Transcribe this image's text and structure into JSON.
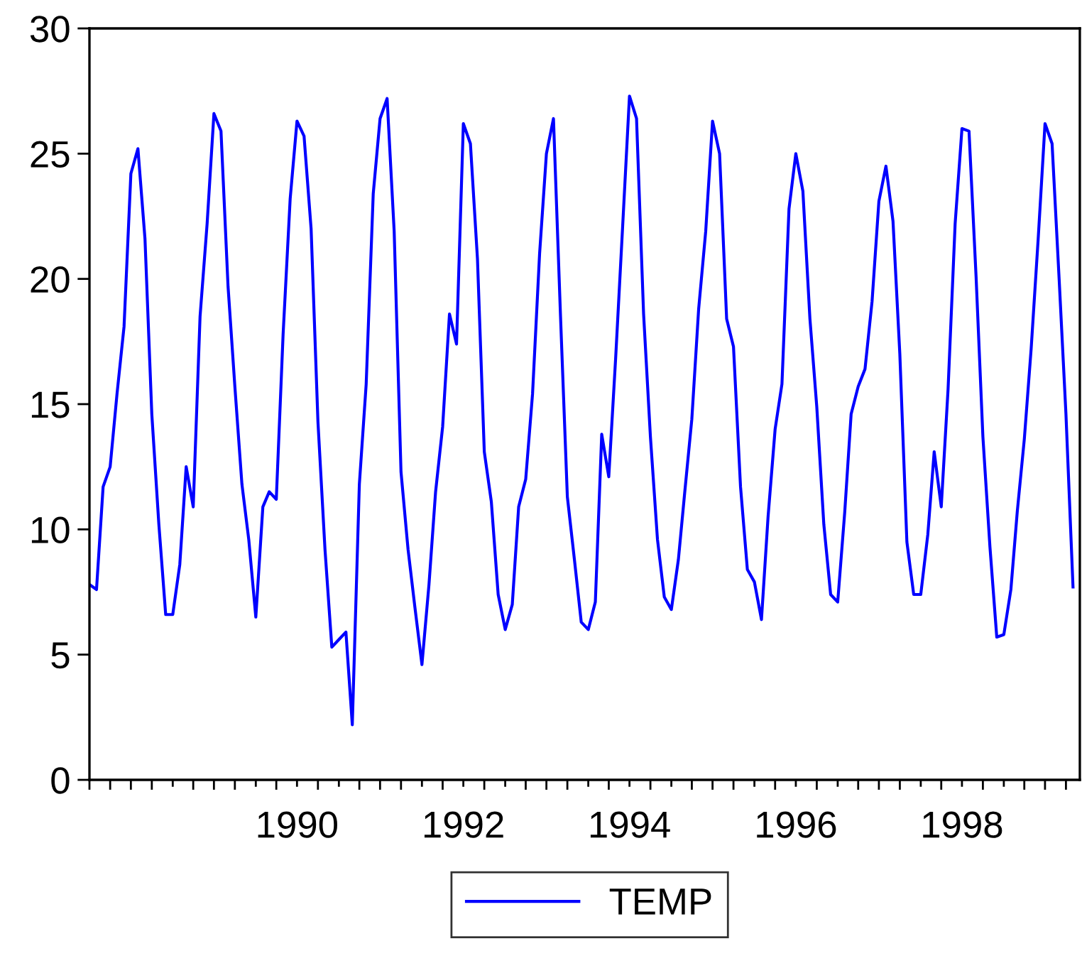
{
  "chart_data": {
    "type": "line",
    "x": [
      "1988-01",
      "1988-02",
      "1988-03",
      "1988-04",
      "1988-05",
      "1988-06",
      "1988-07",
      "1988-08",
      "1988-09",
      "1988-10",
      "1988-11",
      "1988-12",
      "1989-01",
      "1989-02",
      "1989-03",
      "1989-04",
      "1989-05",
      "1989-06",
      "1989-07",
      "1989-08",
      "1989-09",
      "1989-10",
      "1989-11",
      "1989-12",
      "1990-01",
      "1990-02",
      "1990-03",
      "1990-04",
      "1990-05",
      "1990-06",
      "1990-07",
      "1990-08",
      "1990-09",
      "1990-10",
      "1990-11",
      "1990-12",
      "1991-01",
      "1991-02",
      "1991-03",
      "1991-04",
      "1991-05",
      "1991-06",
      "1991-07",
      "1991-08",
      "1991-09",
      "1991-10",
      "1991-11",
      "1991-12",
      "1992-01",
      "1992-02",
      "1992-03",
      "1992-04",
      "1992-05",
      "1992-06",
      "1992-07",
      "1992-08",
      "1992-09",
      "1992-10",
      "1992-11",
      "1992-12",
      "1993-01",
      "1993-02",
      "1993-03",
      "1993-04",
      "1993-05",
      "1993-06",
      "1993-07",
      "1993-08",
      "1993-09",
      "1993-10",
      "1993-11",
      "1993-12",
      "1994-01",
      "1994-02",
      "1994-03",
      "1994-04",
      "1994-05",
      "1994-06",
      "1994-07",
      "1994-08",
      "1994-09",
      "1994-10",
      "1994-11",
      "1994-12",
      "1995-01",
      "1995-02",
      "1995-03",
      "1995-04",
      "1995-05",
      "1995-06",
      "1995-07",
      "1995-08",
      "1995-09",
      "1995-10",
      "1995-11",
      "1995-12",
      "1996-01",
      "1996-02",
      "1996-03",
      "1996-04",
      "1996-05",
      "1996-06",
      "1996-07",
      "1996-08",
      "1996-09",
      "1996-10",
      "1996-11",
      "1996-12",
      "1997-01",
      "1997-02",
      "1997-03",
      "1997-04",
      "1997-05",
      "1997-06",
      "1997-07",
      "1997-08",
      "1997-09",
      "1997-10",
      "1997-11",
      "1997-12",
      "1998-01",
      "1998-02",
      "1998-03",
      "1998-04",
      "1998-05",
      "1998-06",
      "1998-07",
      "1998-08",
      "1998-09",
      "1998-10",
      "1998-11",
      "1998-12",
      "1999-01",
      "1999-02",
      "1999-03",
      "1999-04",
      "1999-05",
      "1999-06",
      "1999-07",
      "1999-08",
      "1999-09",
      "1999-10",
      "1999-11"
    ],
    "series": [
      {
        "name": "TEMP",
        "color": "#0000ff",
        "values": [
          7.8,
          7.6,
          11.7,
          12.5,
          15.4,
          18.1,
          24.2,
          25.2,
          21.6,
          14.6,
          10.2,
          6.6,
          6.6,
          8.6,
          12.5,
          10.9,
          18.5,
          22.2,
          26.6,
          25.9,
          19.7,
          15.7,
          11.8,
          9.6,
          6.5,
          10.9,
          11.5,
          11.2,
          17.8,
          23.2,
          26.3,
          25.7,
          22.0,
          14.3,
          9.2,
          5.3,
          5.6,
          5.9,
          2.2,
          11.8,
          15.8,
          23.4,
          26.4,
          27.2,
          21.9,
          12.3,
          9.2,
          6.9,
          4.6,
          7.8,
          11.5,
          14.1,
          18.6,
          17.4,
          26.2,
          25.4,
          20.8,
          13.1,
          11.1,
          7.4,
          6.0,
          7.0,
          10.9,
          12.0,
          15.4,
          21.0,
          25.0,
          26.4,
          18.5,
          11.3,
          8.8,
          6.3,
          6.0,
          7.1,
          13.8,
          12.1,
          16.8,
          22.1,
          27.3,
          26.4,
          18.6,
          13.7,
          9.6,
          7.3,
          6.8,
          8.8,
          11.5,
          14.4,
          18.8,
          21.9,
          26.3,
          25.0,
          18.4,
          17.3,
          11.7,
          8.4,
          7.9,
          6.4,
          10.5,
          14.0,
          15.8,
          22.8,
          25.0,
          23.5,
          18.4,
          14.9,
          10.2,
          7.4,
          7.1,
          10.7,
          14.6,
          15.7,
          16.4,
          19.1,
          23.1,
          24.5,
          22.3,
          17.0,
          9.5,
          7.4,
          7.4,
          9.8,
          13.1,
          10.9,
          15.6,
          22.2,
          26.0,
          25.9,
          20.1,
          13.7,
          9.3,
          5.7,
          5.8,
          7.6,
          10.7,
          13.6,
          17.2,
          21.6,
          26.2,
          25.4,
          20.0,
          14.6,
          7.7
        ]
      }
    ],
    "xlim": [
      "1988-01",
      "1999-12"
    ],
    "xticks": [
      {
        "value": "1989-01",
        "label": null
      },
      {
        "value": "1990-01",
        "label": null
      },
      {
        "value": "1990-07",
        "label": "1990"
      },
      {
        "value": "1991-01",
        "label": null
      },
      {
        "value": "1992-01",
        "label": null
      },
      {
        "value": "1992-07",
        "label": "1992"
      },
      {
        "value": "1993-01",
        "label": null
      },
      {
        "value": "1994-01",
        "label": null
      },
      {
        "value": "1994-07",
        "label": "1994"
      },
      {
        "value": "1995-01",
        "label": null
      },
      {
        "value": "1996-01",
        "label": null
      },
      {
        "value": "1996-07",
        "label": "1996"
      },
      {
        "value": "1997-01",
        "label": null
      },
      {
        "value": "1998-01",
        "label": null
      },
      {
        "value": "1998-07",
        "label": "1998"
      },
      {
        "value": "1999-01",
        "label": null
      }
    ],
    "ylim": [
      0,
      30
    ],
    "yticks": [
      0,
      5,
      10,
      15,
      20,
      25,
      30
    ],
    "grid": false,
    "legend": "bottom",
    "line_style": "solid",
    "marker": "none"
  }
}
